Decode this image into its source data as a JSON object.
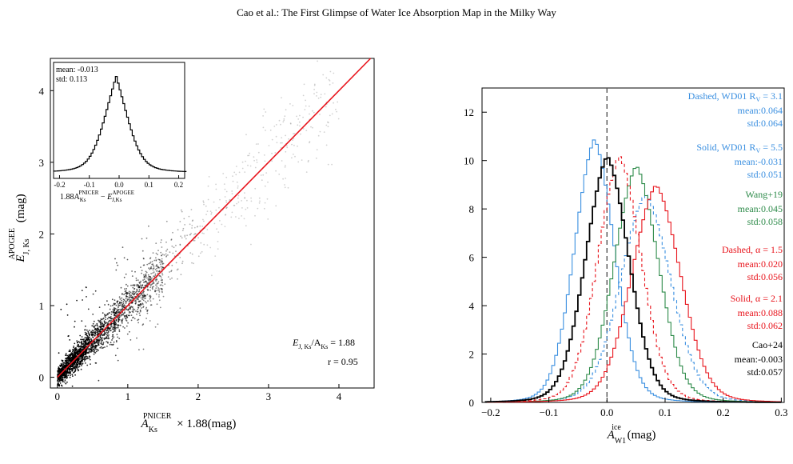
{
  "header": {
    "running_title": "Cao et al.: The First Glimpse of Water Ice Absorption Map in the Milky Way"
  },
  "colors": {
    "fit_line": "#e8141c",
    "blue": "#3a8fe0",
    "green": "#2e8b4a",
    "red": "#e8141c",
    "black": "#000000",
    "zero_line": "#555555"
  },
  "chart_data": [
    {
      "type": "scatter",
      "xlabel": {
        "main": "A",
        "sub": "Ks",
        "sup": "PNICER",
        "suffix": "× 1.88(mag)"
      },
      "ylabel": {
        "main": "E",
        "sub": "J, Ks",
        "sup": "APOGEE",
        "suffix": "(mag)"
      },
      "xlim": [
        -0.1,
        4.5
      ],
      "ylim": [
        -0.15,
        4.45
      ],
      "xticks": [
        "0",
        "1",
        "2",
        "3",
        "4"
      ],
      "yticks": [
        "0",
        "1",
        "2",
        "3",
        "4"
      ],
      "fit_line": {
        "slope": 1.0,
        "intercept": 0.0
      },
      "annotations": {
        "ratio_label": "E_{J,Ks}/A_{Ks} = 1.88",
        "ratio_main": "E",
        "ratio_sub": "J, Ks",
        "ratio_mid": "/A",
        "ratio_sub2": "Ks",
        "ratio_value": " = 1.88",
        "r_label": "r = 0.95"
      },
      "inset": {
        "type": "histogram",
        "stats": [
          "mean: -0.013",
          "std: 0.113"
        ],
        "xlim": [
          -0.22,
          0.22
        ],
        "xticks": [
          "-0.2",
          "-0.1",
          "0.0",
          "0.1",
          "0.2"
        ],
        "xlabel": "1.88A_Ks^PNICER − E_J,Ks^APOGEE",
        "mean": -0.013,
        "std": 0.113
      }
    },
    {
      "type": "line",
      "xlabel": {
        "main": "A",
        "sub": "W1",
        "sup": "ice",
        "suffix": "(mag)"
      },
      "xlim": [
        -0.215,
        0.305
      ],
      "ylim": [
        0,
        13
      ],
      "xticks": [
        "−0.2",
        "−0.1",
        "0.0",
        "0.1",
        "0.2",
        "0.3"
      ],
      "yticks": [
        "0",
        "2",
        "4",
        "6",
        "8",
        "10",
        "12"
      ],
      "zero_line": 0.0,
      "series": [
        {
          "name": "Dashed, WD01 R_V = 3.1",
          "color": "blue",
          "style": "dashed",
          "center": 0.064,
          "peak": 8.6,
          "sigma": 0.044
        },
        {
          "name": "Solid, WD01 R_V = 5.5",
          "color": "blue",
          "style": "solid",
          "center": -0.024,
          "peak": 10.9,
          "sigma": 0.035
        },
        {
          "name": "Wang+19",
          "color": "green",
          "style": "solid",
          "center": 0.048,
          "peak": 9.8,
          "sigma": 0.039
        },
        {
          "name": "Dashed, α = 1.5",
          "color": "red",
          "style": "dashed",
          "center": 0.019,
          "peak": 10.2,
          "sigma": 0.038
        },
        {
          "name": "Solid, α = 2.1",
          "color": "red",
          "style": "solid",
          "center": 0.082,
          "peak": 9.0,
          "sigma": 0.043
        },
        {
          "name": "Cao+24",
          "color": "black",
          "style": "solid",
          "center": -0.002,
          "peak": 10.2,
          "sigma": 0.038
        }
      ],
      "legend": [
        {
          "color": "blue",
          "lines": [
            "Dashed, WD01 R",
            "V",
            " = 3.1",
            "mean:0.064",
            "std:0.064"
          ]
        },
        {
          "color": "blue",
          "lines": [
            "Solid, WD01 R",
            "V",
            " = 5.5",
            "mean:-0.031",
            "std:0.051"
          ]
        },
        {
          "color": "green",
          "lines": [
            "Wang+19",
            "",
            "",
            "mean:0.045",
            "std:0.058"
          ]
        },
        {
          "color": "red",
          "lines": [
            "Dashed,  α = 1.5",
            "",
            "",
            "mean:0.020",
            "std:0.056"
          ]
        },
        {
          "color": "red",
          "lines": [
            "Solid,  α = 2.1",
            "",
            "",
            "mean:0.088",
            "std:0.062"
          ]
        },
        {
          "color": "black",
          "lines": [
            "Cao+24",
            "",
            "",
            "mean:-0.003",
            "std:0.057"
          ]
        }
      ]
    }
  ]
}
